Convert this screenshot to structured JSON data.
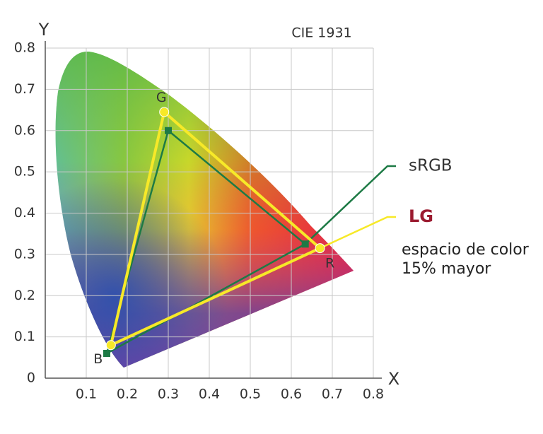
{
  "chart_data": {
    "type": "line",
    "title": "CIE 1931",
    "x_label": "X",
    "y_label": "Y",
    "xlim": [
      0,
      0.8
    ],
    "ylim": [
      0,
      0.8
    ],
    "xticks": [
      0.1,
      0.2,
      0.3,
      0.4,
      0.5,
      0.6,
      0.7,
      0.8
    ],
    "yticks": [
      0,
      0.1,
      0.2,
      0.3,
      0.4,
      0.5,
      0.6,
      0.7,
      0.8
    ],
    "grid": true,
    "series": [
      {
        "name": "sRGB",
        "color": "#1d7a45",
        "marker": "square",
        "x": [
          0.634,
          0.3,
          0.15
        ],
        "values": [
          0.325,
          0.6,
          0.06
        ]
      },
      {
        "name": "LG",
        "color": "#f7e928",
        "marker": "circle",
        "x": [
          0.67,
          0.29,
          0.16
        ],
        "values": [
          0.315,
          0.645,
          0.08
        ],
        "labels": [
          "R",
          "G",
          "B"
        ]
      }
    ],
    "annotation": [
      "espacio de color",
      "15% mayor"
    ]
  }
}
